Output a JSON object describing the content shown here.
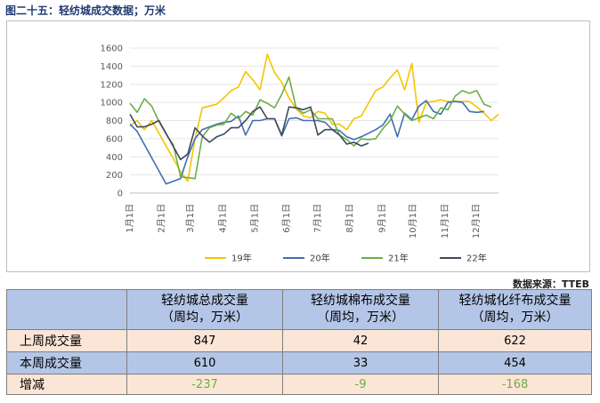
{
  "header": {
    "title": "图二十五：轻纺城成交数据；万米",
    "source": "数据来源：TTEB"
  },
  "chart_data": {
    "type": "line",
    "ylim": [
      0,
      1600
    ],
    "yticks": [
      0,
      200,
      400,
      600,
      800,
      1000,
      1200,
      1400,
      1600
    ],
    "x_range": [
      1,
      52
    ],
    "month_labels": [
      "1月1日",
      "2月1日",
      "3月1日",
      "4月1日",
      "5月1日",
      "6月1日",
      "7月1日",
      "8月1日",
      "9月1日",
      "10月1日",
      "11月1日",
      "12月1日"
    ],
    "month_positions": [
      1,
      5.4,
      9.4,
      13.9,
      18.3,
      22.7,
      27,
      31.4,
      35.9,
      40.2,
      44.6,
      48.9
    ],
    "legend_position": "bottom",
    "grid": true,
    "series": [
      {
        "name": "19年",
        "color": "#f5c400",
        "x": [
          1,
          2,
          3,
          4,
          8,
          9,
          10,
          11,
          12,
          13,
          14,
          15,
          16,
          17,
          18,
          19,
          20,
          21,
          22,
          23,
          24,
          25,
          26,
          27,
          28,
          29,
          30,
          31,
          32,
          33,
          34,
          35,
          36,
          37,
          38,
          39,
          40,
          41,
          42,
          43,
          44,
          45,
          46,
          47,
          48,
          49,
          50,
          51,
          52
        ],
        "values": [
          740,
          800,
          700,
          800,
          240,
          130,
          600,
          940,
          960,
          980,
          1050,
          1130,
          1170,
          1340,
          1250,
          1140,
          1530,
          1330,
          1220,
          1050,
          930,
          850,
          830,
          900,
          880,
          760,
          760,
          700,
          820,
          850,
          990,
          1130,
          1170,
          1270,
          1360,
          1140,
          1430,
          780,
          1000,
          1010,
          1030,
          1010,
          1010,
          1010,
          1010,
          950,
          880,
          800,
          870
        ]
      },
      {
        "name": "20年",
        "color": "#3f6eb0",
        "x": [
          1,
          2,
          6,
          7,
          8,
          9,
          10,
          11,
          12,
          13,
          14,
          15,
          16,
          17,
          18,
          19,
          20,
          21,
          22,
          23,
          24,
          25,
          26,
          27,
          28,
          29,
          30,
          31,
          32,
          33,
          34,
          35,
          36,
          37,
          38,
          39,
          40,
          41,
          42,
          43,
          44,
          45,
          46,
          47,
          48,
          49,
          50
        ],
        "values": [
          760,
          680,
          100,
          130,
          160,
          400,
          600,
          700,
          730,
          760,
          780,
          790,
          850,
          640,
          800,
          800,
          820,
          820,
          630,
          820,
          830,
          800,
          800,
          800,
          780,
          700,
          690,
          620,
          590,
          620,
          660,
          700,
          750,
          870,
          620,
          880,
          810,
          960,
          1020,
          900,
          870,
          1000,
          1010,
          1000,
          900,
          890,
          900
        ]
      },
      {
        "name": "21年",
        "color": "#6fad47",
        "x": [
          1,
          2,
          3,
          4,
          5,
          6,
          7,
          8,
          9,
          10,
          11,
          12,
          13,
          14,
          15,
          16,
          17,
          18,
          19,
          20,
          21,
          22,
          23,
          24,
          25,
          26,
          27,
          28,
          29,
          30,
          31,
          32,
          33,
          34,
          35,
          36,
          37,
          38,
          39,
          40,
          41,
          42,
          43,
          44,
          45,
          46,
          47,
          48,
          49,
          50,
          51
        ],
        "values": [
          990,
          890,
          1040,
          960,
          790,
          650,
          530,
          180,
          170,
          160,
          620,
          720,
          750,
          760,
          880,
          820,
          900,
          860,
          1030,
          990,
          940,
          1090,
          1280,
          940,
          880,
          920,
          820,
          820,
          820,
          640,
          590,
          520,
          600,
          590,
          600,
          710,
          800,
          960,
          870,
          800,
          830,
          860,
          820,
          940,
          920,
          1070,
          1130,
          1100,
          1130,
          980,
          950
        ]
      },
      {
        "name": "22年",
        "color": "#404a5c",
        "x": [
          1,
          2,
          3,
          4,
          5,
          8,
          9,
          10,
          11,
          12,
          13,
          14,
          15,
          16,
          17,
          18,
          19,
          20,
          21,
          22,
          23,
          24,
          25,
          26,
          27,
          28,
          29,
          30,
          31,
          32,
          33,
          34
        ],
        "values": [
          870,
          730,
          730,
          760,
          800,
          370,
          430,
          720,
          630,
          560,
          620,
          650,
          720,
          720,
          800,
          900,
          950,
          820,
          820,
          640,
          950,
          940,
          920,
          950,
          640,
          700,
          700,
          640,
          540,
          560,
          520,
          550
        ]
      }
    ]
  },
  "table": {
    "headers": [
      {
        "line1": "轻纺城总成交量",
        "line2": "（周均，万米）"
      },
      {
        "line1": "轻纺城棉布成交量",
        "line2": "（周均，万米）"
      },
      {
        "line1": "轻纺城化纤布成交量",
        "line2": "（周均，万米）"
      }
    ],
    "rows": [
      {
        "label": "上周成交量",
        "values": [
          "847",
          "42",
          "622"
        ]
      },
      {
        "label": "本周成交量",
        "values": [
          "610",
          "33",
          "454"
        ]
      },
      {
        "label": "增减",
        "values": [
          "-237",
          "-9",
          "-168"
        ]
      }
    ]
  }
}
